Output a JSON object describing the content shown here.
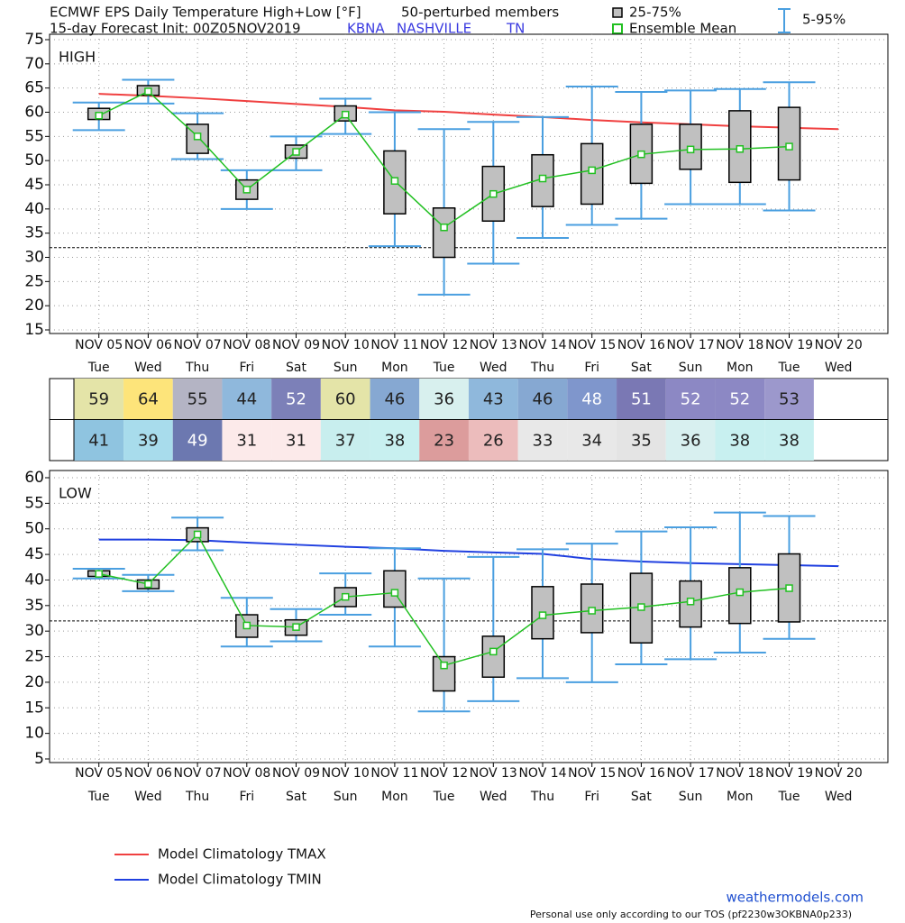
{
  "header": {
    "title": "ECMWF EPS Daily Temperature High+Low [°F]",
    "members": "50-perturbed members",
    "subtitle": "15-day Forecast Init: 00Z05NOV2019",
    "station": "KBNA",
    "city": "NASHVILLE",
    "state": "TN"
  },
  "legend": {
    "box": "25-75%",
    "mean": "Ensemble Mean",
    "whisker": "5-95%",
    "box_color": "#c0c0c0",
    "mean_color": "#22c022",
    "whisker_color": "#4a9fe0"
  },
  "chart_data": [
    {
      "type": "box",
      "label": "HIGH",
      "categories": [
        "NOV 05",
        "NOV 06",
        "NOV 07",
        "NOV 08",
        "NOV 09",
        "NOV 10",
        "NOV 11",
        "NOV 12",
        "NOV 13",
        "NOV 14",
        "NOV 15",
        "NOV 16",
        "NOV 17",
        "NOV 18",
        "NOV 19",
        "NOV 20"
      ],
      "weekdays": [
        "Tue",
        "Wed",
        "Thu",
        "Fri",
        "Sat",
        "Sun",
        "Mon",
        "Tue",
        "Wed",
        "Thu",
        "Fri",
        "Sat",
        "Sun",
        "Mon",
        "Tue",
        "Wed"
      ],
      "ylim": [
        15,
        75
      ],
      "yticks": [
        15,
        20,
        25,
        30,
        35,
        40,
        45,
        50,
        55,
        60,
        65,
        70,
        75
      ],
      "grid": true,
      "reference_line": 32,
      "p5": [
        56.3,
        61.8,
        50.3,
        40,
        48,
        55.5,
        32.3,
        22.3,
        28.7,
        34,
        36.7,
        38,
        41,
        41,
        39.7,
        null
      ],
      "p25": [
        58.5,
        63.5,
        51.5,
        42,
        50.5,
        58.2,
        39,
        30,
        37.5,
        40.5,
        41,
        45.3,
        48.2,
        45.5,
        46,
        null
      ],
      "p75": [
        60.8,
        65.5,
        57.5,
        46,
        53.2,
        61.3,
        52,
        40.2,
        48.8,
        51.2,
        53.5,
        57.5,
        57.5,
        60.3,
        61,
        null
      ],
      "p95": [
        62,
        66.7,
        59.8,
        48,
        55,
        62.8,
        60,
        56.5,
        58,
        59,
        65.3,
        64.2,
        64.5,
        64.8,
        66.2,
        null
      ],
      "mean": [
        59.3,
        64.3,
        55.0,
        44.0,
        51.8,
        59.5,
        45.8,
        36.2,
        43.1,
        46.3,
        48.0,
        51.3,
        52.3,
        52.4,
        52.9,
        null
      ],
      "climatology": {
        "name": "Model Climatology TMAX",
        "color": "#f04040",
        "values": [
          63.8,
          63.4,
          62.9,
          62.3,
          61.7,
          61.1,
          60.4,
          60.1,
          59.5,
          59,
          58.4,
          57.9,
          57.5,
          57.1,
          56.8,
          56.5
        ]
      }
    },
    {
      "type": "box",
      "label": "LOW",
      "categories": [
        "NOV 05",
        "NOV 06",
        "NOV 07",
        "NOV 08",
        "NOV 09",
        "NOV 10",
        "NOV 11",
        "NOV 12",
        "NOV 13",
        "NOV 14",
        "NOV 15",
        "NOV 16",
        "NOV 17",
        "NOV 18",
        "NOV 19",
        "NOV 20"
      ],
      "weekdays": [
        "Tue",
        "Wed",
        "Thu",
        "Fri",
        "Sat",
        "Sun",
        "Mon",
        "Tue",
        "Wed",
        "Thu",
        "Fri",
        "Sat",
        "Sun",
        "Mon",
        "Tue",
        "Wed"
      ],
      "ylim": [
        5,
        60
      ],
      "yticks": [
        5,
        10,
        15,
        20,
        25,
        30,
        35,
        40,
        45,
        50,
        55,
        60
      ],
      "grid": true,
      "reference_line": 32,
      "p5": [
        40.3,
        37.8,
        45.8,
        27,
        28,
        33.2,
        27,
        14.3,
        16.3,
        20.8,
        20,
        23.5,
        24.5,
        25.8,
        28.5,
        null
      ],
      "p25": [
        40.7,
        38.3,
        47.5,
        28.8,
        29.2,
        34.8,
        34.7,
        18.3,
        21,
        28.5,
        29.7,
        27.7,
        30.8,
        31.5,
        31.8,
        null
      ],
      "p75": [
        41.8,
        40,
        50.2,
        33.2,
        32.2,
        38.5,
        41.8,
        25,
        29,
        38.7,
        39.2,
        41.3,
        39.8,
        42.4,
        45.1,
        null
      ],
      "p95": [
        42.2,
        41,
        52.2,
        36.5,
        34.3,
        41.3,
        46.2,
        40.3,
        44.5,
        46,
        47.1,
        49.5,
        50.3,
        53.2,
        52.5,
        null
      ],
      "mean": [
        41.2,
        39.2,
        48.9,
        31.1,
        30.8,
        36.7,
        37.5,
        23.3,
        26.0,
        33.1,
        34.0,
        34.7,
        35.8,
        37.6,
        38.4,
        null
      ],
      "climatology": {
        "name": "Model Climatology TMIN",
        "color": "#2040e0",
        "values": [
          47.9,
          47.9,
          47.8,
          47.3,
          46.9,
          46.5,
          46.2,
          45.7,
          45.4,
          45.1,
          44.1,
          43.6,
          43.3,
          43.1,
          42.9,
          42.7
        ]
      }
    }
  ],
  "table": {
    "rows": [
      [
        59,
        64,
        55,
        44,
        52,
        60,
        46,
        36,
        43,
        46,
        48,
        51,
        52,
        52,
        53
      ],
      [
        41,
        39,
        49,
        31,
        31,
        37,
        38,
        23,
        26,
        33,
        34,
        35,
        36,
        38,
        38
      ]
    ],
    "colors": [
      [
        "#e4e4a8",
        "#fde47a",
        "#b4b4c4",
        "#8fb8dc",
        "#7c80b8",
        "#e4e4a8",
        "#86a8d2",
        "#d8f0ee",
        "#8fb8dc",
        "#86a8d2",
        "#7f96cc",
        "#7a78b4",
        "#8c88c4",
        "#8c88c4",
        "#9c98cc"
      ],
      [
        "#8fc4e0",
        "#a8dcec",
        "#6c78b0",
        "#fceaea",
        "#fceaea",
        "#c8eeee",
        "#c8f0f0",
        "#dc9c9c",
        "#ecbcbc",
        "#e8e8e8",
        "#e8e8e8",
        "#e4e4e4",
        "#d8f0f0",
        "#c8f0f0",
        "#c8f0f0"
      ]
    ]
  },
  "footer": {
    "site": "weathermodels.com",
    "note": "Personal use only according to our TOS (pf2230w3OKBNA0p233)"
  }
}
